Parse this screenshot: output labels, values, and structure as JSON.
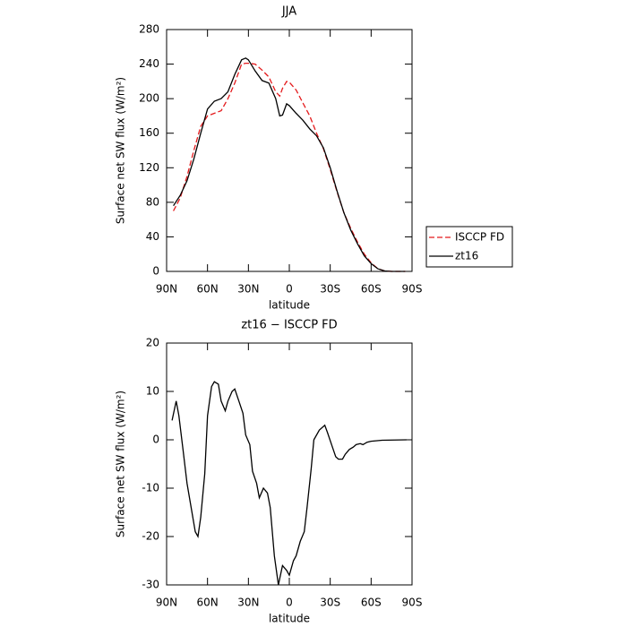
{
  "chart_data": [
    {
      "type": "line",
      "title": "JJA",
      "xlabel": "latitude",
      "ylabel": "Surface net SW flux (W/m²)",
      "x": [
        85,
        80,
        75,
        70,
        65,
        60,
        55,
        50,
        45,
        40,
        35,
        32,
        30,
        25,
        20,
        15,
        10,
        7,
        5,
        2,
        0,
        -5,
        -10,
        -15,
        -20,
        -25,
        -30,
        -35,
        -40,
        -45,
        -50,
        -55,
        -60,
        -65,
        -70,
        -75,
        -80,
        -85
      ],
      "series": [
        {
          "name": "ISCCP FD",
          "color": "#e41a1c",
          "dash": true,
          "values": [
            70,
            85,
            110,
            140,
            168,
            180,
            183,
            186,
            200,
            218,
            240,
            241,
            241,
            240,
            233,
            225,
            208,
            203,
            212,
            220,
            219,
            210,
            195,
            180,
            160,
            142,
            118,
            92,
            68,
            50,
            34,
            20,
            10,
            3,
            0.5,
            0,
            0,
            0
          ]
        },
        {
          "name": "zt16",
          "color": "#000000",
          "dash": false,
          "values": [
            76,
            88,
            105,
            130,
            160,
            188,
            197,
            200,
            208,
            228,
            245,
            247,
            245,
            232,
            221,
            218,
            200,
            180,
            181,
            194,
            192,
            183,
            175,
            165,
            157,
            143,
            120,
            93,
            68,
            48,
            32,
            18,
            9,
            3,
            0.5,
            0,
            0,
            0
          ]
        }
      ],
      "xlim": [
        90,
        -90
      ],
      "xticks": [
        {
          "value": 90,
          "label": "90N"
        },
        {
          "value": 60,
          "label": "60N"
        },
        {
          "value": 30,
          "label": "30N"
        },
        0,
        {
          "value": -30,
          "label": "30S"
        },
        {
          "value": -60,
          "label": "60S"
        },
        {
          "value": -90,
          "label": "90S"
        }
      ],
      "ylim": [
        0,
        280
      ],
      "yticks": [
        0,
        40,
        80,
        120,
        160,
        200,
        240,
        280
      ],
      "legend": "outside right"
    },
    {
      "type": "line",
      "title": "zt16 − ISCCP FD",
      "xlabel": "latitude",
      "ylabel": "Surface net SW flux (W/m²)",
      "x": [
        86,
        83,
        81,
        78,
        75,
        72,
        69,
        67,
        65,
        62,
        60,
        57,
        55,
        52,
        50,
        47,
        45,
        42,
        40,
        37,
        34,
        32,
        29,
        27,
        24,
        22,
        19,
        16,
        14,
        11,
        8,
        5,
        2,
        0,
        -3,
        -5,
        -8,
        -11,
        -13,
        -16,
        -18,
        -22,
        -26,
        -28,
        -31,
        -34,
        -36,
        -39,
        -41,
        -44,
        -47,
        -49,
        -52,
        -54,
        -57,
        -60,
        -68,
        -86
      ],
      "series": [
        {
          "color": "#000000",
          "dash": false,
          "values": [
            4,
            8,
            5,
            -2,
            -9,
            -14,
            -19,
            -20,
            -16,
            -7,
            5,
            11,
            12,
            11.5,
            8,
            6,
            8,
            10,
            10.5,
            8,
            5.5,
            1,
            -1,
            -6.5,
            -9,
            -12,
            -10,
            -11,
            -14,
            -24,
            -30,
            -26,
            -27,
            -28,
            -25,
            -24,
            -21,
            -19,
            -14,
            -6,
            0,
            2,
            3,
            1.5,
            -1,
            -3.5,
            -4,
            -4,
            -3,
            -2,
            -1.5,
            -1,
            -0.8,
            -1,
            -0.5,
            -0.3,
            -0.1,
            0
          ]
        }
      ],
      "xlim": [
        90,
        -90
      ],
      "xticks": [
        {
          "value": 90,
          "label": "90N"
        },
        {
          "value": 60,
          "label": "60N"
        },
        {
          "value": 30,
          "label": "30N"
        },
        0,
        {
          "value": -30,
          "label": "30S"
        },
        {
          "value": -60,
          "label": "60S"
        },
        {
          "value": -90,
          "label": "90S"
        }
      ],
      "ylim": [
        -30,
        20
      ],
      "yticks": [
        -30,
        -20,
        -10,
        0,
        10,
        20
      ]
    }
  ]
}
